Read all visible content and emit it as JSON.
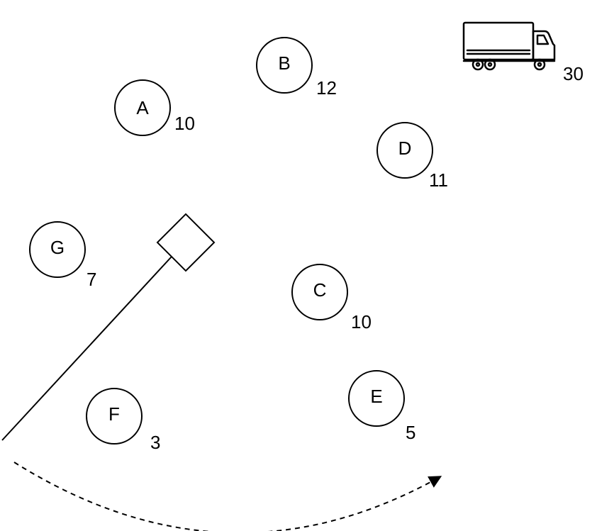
{
  "nodes": [
    {
      "id": "a",
      "label": "A",
      "demand": "10"
    },
    {
      "id": "b",
      "label": "B",
      "demand": "12"
    },
    {
      "id": "c",
      "label": "C",
      "demand": "10"
    },
    {
      "id": "d",
      "label": "D",
      "demand": "11"
    },
    {
      "id": "e",
      "label": "E",
      "demand": "5"
    },
    {
      "id": "f",
      "label": "F",
      "demand": "3"
    },
    {
      "id": "g",
      "label": "G",
      "demand": "7"
    }
  ],
  "vehicle": {
    "icon": "truck-icon",
    "capacity": "30"
  },
  "sweep": {
    "depot_icon": "depot-square-icon",
    "ray_icon": "sweep-ray-line",
    "arrow_icon": "sweep-direction-arrow-icon"
  }
}
